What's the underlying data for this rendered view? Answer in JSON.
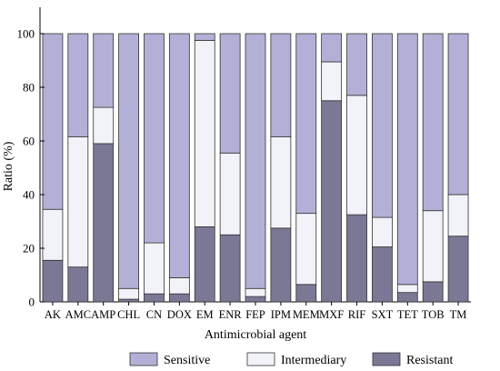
{
  "chart_data": {
    "type": "bar",
    "stacked": true,
    "xlabel": "Antimicrobial agent",
    "ylabel": "Ratio (%)",
    "ylim": [
      0,
      100
    ],
    "yticks": [
      "0",
      "20",
      "40",
      "60",
      "80",
      "100"
    ],
    "grid": false,
    "legend_position": "bottom",
    "categories": [
      "AK",
      "AMC",
      "AMP",
      "CHL",
      "CN",
      "DOX",
      "EM",
      "ENR",
      "FEP",
      "IPM",
      "MEM",
      "MXF",
      "RIF",
      "SXT",
      "TET",
      "TOB",
      "TM"
    ],
    "series": [
      {
        "name": "Resistant",
        "color": "#7a7895",
        "values": [
          15.5,
          13,
          59,
          1,
          3,
          3,
          28,
          25,
          2,
          27.5,
          6.5,
          75,
          32.5,
          20.5,
          3.5,
          7.5,
          24.5
        ]
      },
      {
        "name": "Intermediary",
        "color": "#f2f2f9",
        "values": [
          19,
          48.5,
          13.5,
          4,
          19,
          6,
          69.5,
          30.5,
          3,
          34,
          26.5,
          14.5,
          44.5,
          11,
          3,
          26.5,
          15.5
        ]
      },
      {
        "name": "Sensitive",
        "color": "#b2b0d6",
        "values": [
          65.5,
          38.5,
          27.5,
          95,
          78,
          91,
          2.5,
          44.5,
          95,
          38.5,
          67,
          10.5,
          23,
          68.5,
          93.5,
          66,
          60
        ]
      }
    ],
    "legend": [
      "Sensitive",
      "Intermediary",
      "Resistant"
    ]
  }
}
